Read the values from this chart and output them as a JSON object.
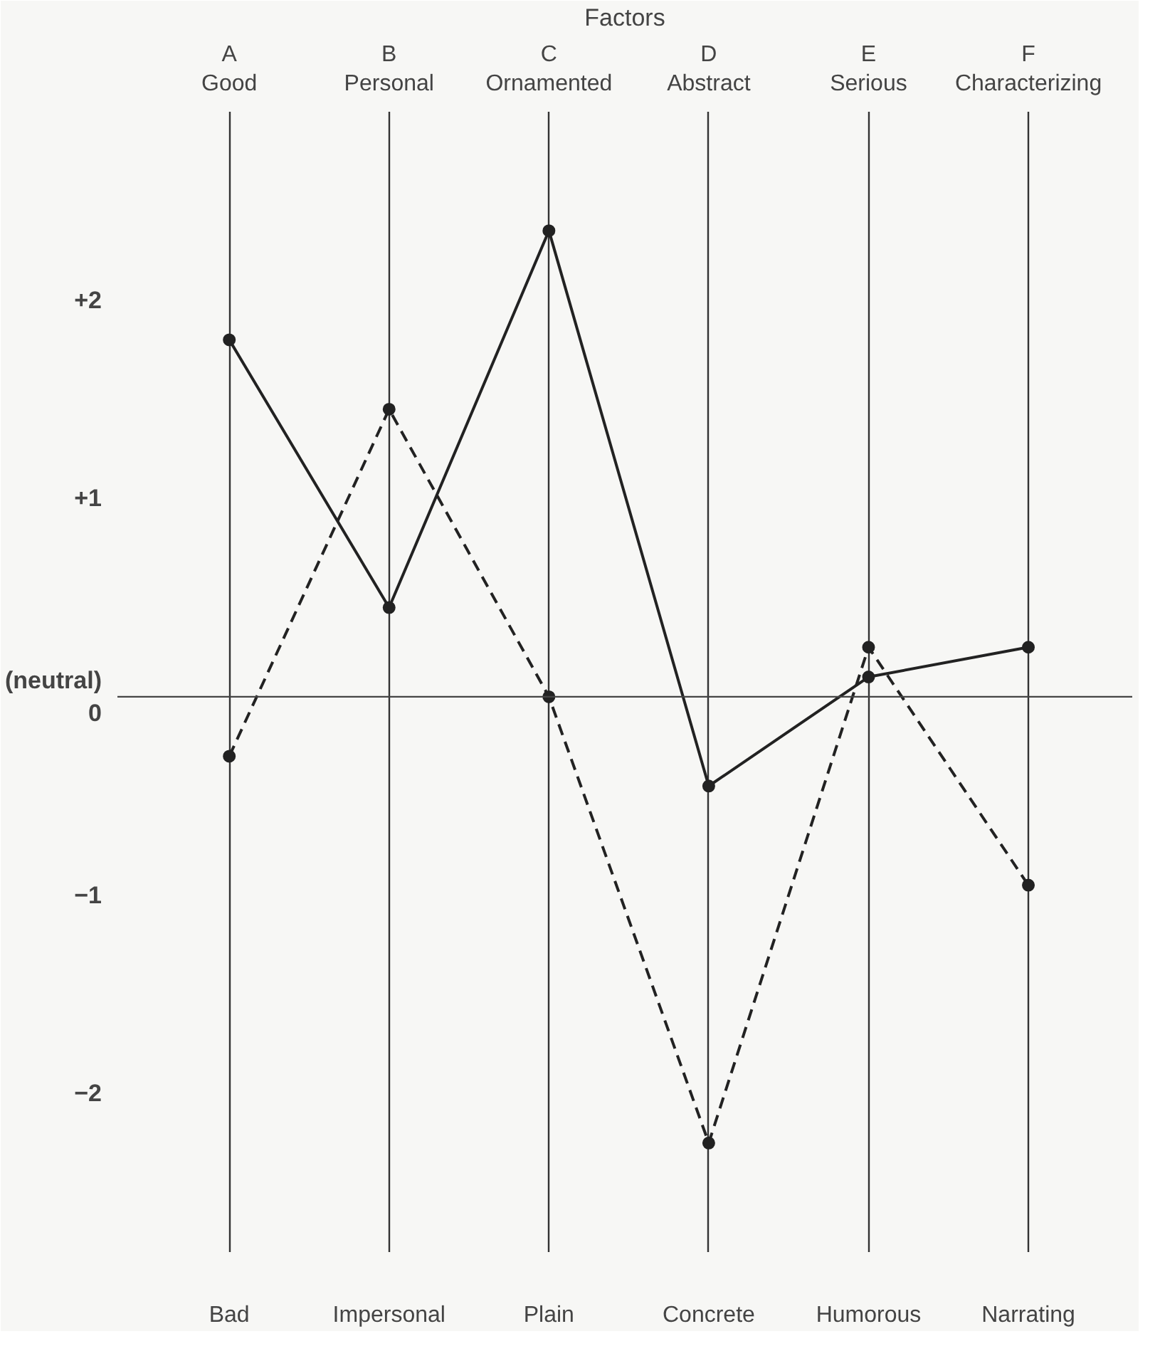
{
  "chart_data": {
    "type": "line",
    "xlabel": "Factors",
    "categories": [
      "A\nGood",
      "B\nPersonal",
      "C\nOrnamented",
      "D\nAbstract",
      "E\nSerious",
      "F\nCharacterizing"
    ],
    "series": [
      {
        "color": "#222222",
        "line_style": "solid",
        "values": [
          1.8,
          0.45,
          2.35,
          -0.45,
          0.1,
          0.25
        ]
      },
      {
        "color": "#222222",
        "line_style": "dashed",
        "values": [
          -0.3,
          1.45,
          0.0,
          -2.25,
          0.25,
          -0.95
        ]
      }
    ],
    "ylim": [
      -2.8,
      2.95
    ],
    "yticks": [
      {
        "value": 2,
        "label": "+2"
      },
      {
        "value": 1,
        "label": "+1"
      },
      {
        "value": 0,
        "label": "(neutral)\n0"
      },
      {
        "value": -1,
        "label": "−1"
      },
      {
        "value": -2,
        "label": "−2"
      }
    ],
    "ref_lines": [
      {
        "axis": "y",
        "value": 0,
        "label": null,
        "color": "#444444"
      }
    ],
    "annotations": [
      "Bad",
      "Impersonal",
      "Plain",
      "Concrete",
      "Humorous",
      "Narrating"
    ],
    "grid": "x",
    "marker": "circle"
  }
}
